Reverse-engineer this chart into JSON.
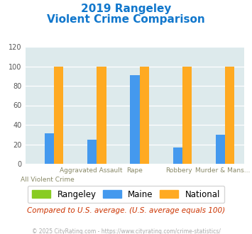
{
  "title_line1": "2019 Rangeley",
  "title_line2": "Violent Crime Comparison",
  "categories": [
    "All Violent Crime",
    "Aggravated Assault",
    "Rape",
    "Robbery",
    "Murder & Mans..."
  ],
  "cat_top": [
    "",
    "Aggravated Assault",
    "Rape",
    "Robbery",
    "Murder & Mans..."
  ],
  "cat_bot": [
    "All Violent Crime",
    "",
    "",
    "",
    ""
  ],
  "rangeley": [
    0,
    0,
    0,
    0,
    0
  ],
  "maine": [
    31,
    25,
    91,
    17,
    30
  ],
  "national": [
    100,
    100,
    100,
    100,
    100
  ],
  "rangeley_color": "#88cc22",
  "maine_color": "#4499ee",
  "national_color": "#ffaa22",
  "ylim": [
    0,
    120
  ],
  "yticks": [
    0,
    20,
    40,
    60,
    80,
    100,
    120
  ],
  "bg_color": "#ddeaec",
  "title_color": "#1177cc",
  "subtitle_note": "Compared to U.S. average. (U.S. average equals 100)",
  "footer": "© 2025 CityRating.com - https://www.cityrating.com/crime-statistics/",
  "legend_labels": [
    "Rangeley",
    "Maine",
    "National"
  ],
  "bar_width": 0.22
}
